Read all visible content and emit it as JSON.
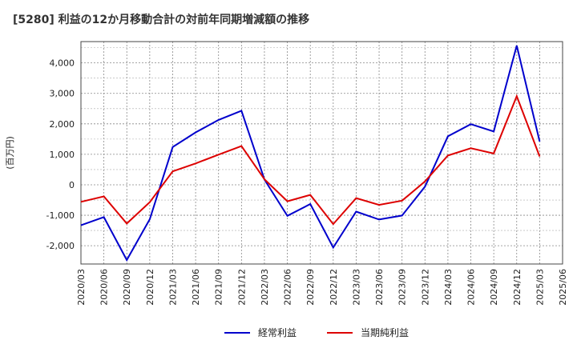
{
  "chart_data": {
    "type": "line",
    "title": "[5280]  利益の12か月移動合計の対前年同期増減額の推移",
    "ylabel": "(百万円)",
    "xlabel": "",
    "ylim": [
      -2600,
      4700
    ],
    "yticks": [
      4000,
      3000,
      2000,
      1000,
      0,
      -1000,
      -2000
    ],
    "ytick_labels": [
      "4,000",
      "3,000",
      "2,000",
      "1,000",
      "0",
      "-1,000",
      "-2,000"
    ],
    "x": [
      "2020/03",
      "2020/06",
      "2020/09",
      "2020/12",
      "2021/03",
      "2021/06",
      "2021/09",
      "2021/12",
      "2022/03",
      "2022/06",
      "2022/09",
      "2022/12",
      "2023/03",
      "2023/06",
      "2023/09",
      "2023/12",
      "2024/03",
      "2024/06",
      "2024/09",
      "2024/12",
      "2025/03",
      "2025/06"
    ],
    "grid": true,
    "legend_position": "bottom",
    "series": [
      {
        "name": "経常利益",
        "color": "#0000cc",
        "values": [
          -1330,
          -1060,
          -2470,
          -1130,
          1240,
          1720,
          2130,
          2430,
          170,
          -1020,
          -630,
          -2060,
          -880,
          -1140,
          -1010,
          -60,
          1590,
          1990,
          1750,
          4570,
          1420,
          null
        ]
      },
      {
        "name": "当期純利益",
        "color": "#dd0000",
        "values": [
          -560,
          -380,
          -1270,
          -570,
          440,
          700,
          990,
          1270,
          180,
          -540,
          -330,
          -1290,
          -440,
          -660,
          -520,
          110,
          960,
          1200,
          1030,
          2910,
          930,
          null
        ]
      }
    ]
  }
}
